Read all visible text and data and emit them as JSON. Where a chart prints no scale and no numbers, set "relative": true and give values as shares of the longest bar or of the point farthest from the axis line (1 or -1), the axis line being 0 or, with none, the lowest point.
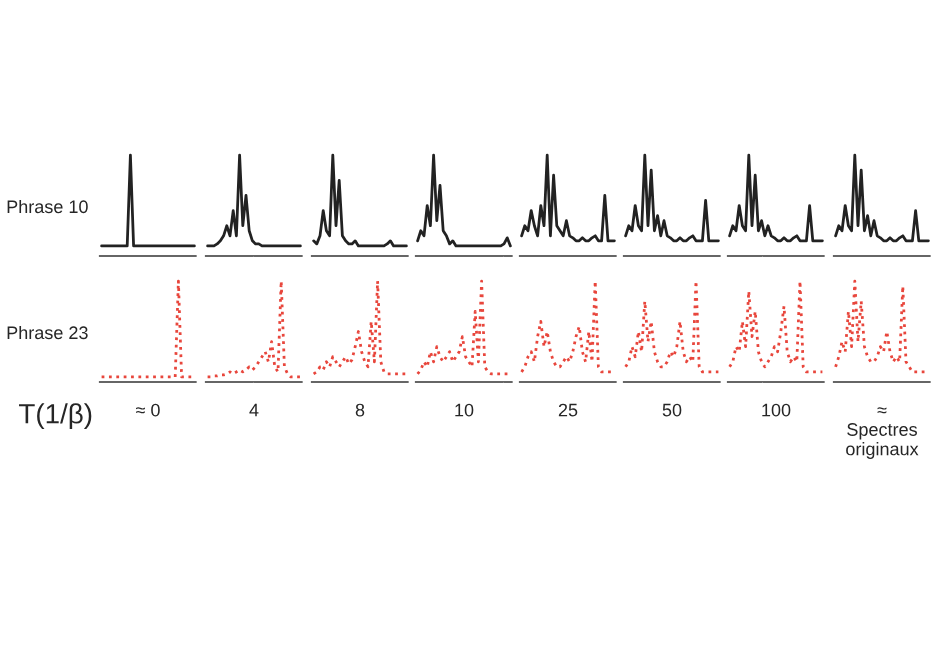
{
  "chart_data": [
    {
      "type": "line",
      "relative": true,
      "line_style": "solid",
      "ylabel": "Phrase 10",
      "categories": [
        null,
        null,
        null,
        null,
        null,
        null,
        null,
        null,
        null,
        null,
        null,
        null,
        null,
        null,
        null,
        null,
        null,
        null,
        null,
        null,
        null,
        null,
        null,
        null,
        null,
        null,
        null,
        null,
        null,
        null
      ],
      "series": [
        {
          "color": "#222222",
          "values": [
            0.1,
            0.1,
            0.1,
            0.1,
            0.1,
            0.1,
            0.1,
            0.1,
            0.1,
            1.0,
            0.1,
            0.1,
            0.1,
            0.1,
            0.1,
            0.1,
            0.1,
            0.1,
            0.1,
            0.1,
            0.1,
            0.1,
            0.1,
            0.1,
            0.1,
            0.1,
            0.1,
            0.1,
            0.1,
            0.1
          ]
        }
      ]
    },
    {
      "type": "line",
      "relative": true,
      "line_style": "solid",
      "categories": [
        null,
        null,
        null,
        null,
        null,
        null,
        null,
        null,
        null,
        null,
        null,
        null,
        null,
        null,
        null,
        null,
        null,
        null,
        null,
        null,
        null,
        null,
        null,
        null,
        null,
        null,
        null,
        null,
        null,
        null
      ],
      "series": [
        {
          "color": "#222222",
          "values": [
            0.1,
            0.1,
            0.1,
            0.12,
            0.15,
            0.2,
            0.3,
            0.2,
            0.45,
            0.2,
            1.0,
            0.3,
            0.6,
            0.25,
            0.15,
            0.12,
            0.12,
            0.1,
            0.1,
            0.1,
            0.1,
            0.1,
            0.1,
            0.1,
            0.1,
            0.1,
            0.1,
            0.1,
            0.1,
            0.1
          ]
        }
      ]
    },
    {
      "type": "line",
      "relative": true,
      "line_style": "solid",
      "categories": [
        null,
        null,
        null,
        null,
        null,
        null,
        null,
        null,
        null,
        null,
        null,
        null,
        null,
        null,
        null,
        null,
        null,
        null,
        null,
        null,
        null,
        null,
        null,
        null,
        null,
        null,
        null,
        null,
        null,
        null
      ],
      "series": [
        {
          "color": "#222222",
          "values": [
            0.15,
            0.12,
            0.2,
            0.45,
            0.25,
            0.2,
            1.0,
            0.3,
            0.75,
            0.2,
            0.15,
            0.12,
            0.12,
            0.15,
            0.1,
            0.1,
            0.1,
            0.1,
            0.1,
            0.1,
            0.1,
            0.1,
            0.1,
            0.12,
            0.15,
            0.1,
            0.1,
            0.1,
            0.1,
            0.1
          ]
        }
      ]
    },
    {
      "type": "line",
      "relative": true,
      "line_style": "solid",
      "categories": [
        null,
        null,
        null,
        null,
        null,
        null,
        null,
        null,
        null,
        null,
        null,
        null,
        null,
        null,
        null,
        null,
        null,
        null,
        null,
        null,
        null,
        null,
        null,
        null,
        null,
        null,
        null,
        null,
        null,
        null
      ],
      "series": [
        {
          "color": "#222222",
          "values": [
            0.15,
            0.25,
            0.2,
            0.5,
            0.3,
            1.0,
            0.35,
            0.7,
            0.25,
            0.2,
            0.12,
            0.15,
            0.1,
            0.1,
            0.1,
            0.1,
            0.1,
            0.1,
            0.1,
            0.1,
            0.1,
            0.1,
            0.1,
            0.1,
            0.1,
            0.1,
            0.1,
            0.12,
            0.18,
            0.1
          ]
        }
      ]
    },
    {
      "type": "line",
      "relative": true,
      "line_style": "solid",
      "categories": [
        null,
        null,
        null,
        null,
        null,
        null,
        null,
        null,
        null,
        null,
        null,
        null,
        null,
        null,
        null,
        null,
        null,
        null,
        null,
        null,
        null,
        null,
        null,
        null,
        null,
        null,
        null,
        null,
        null,
        null
      ],
      "series": [
        {
          "color": "#222222",
          "values": [
            0.2,
            0.3,
            0.25,
            0.45,
            0.3,
            0.2,
            0.5,
            0.3,
            1.0,
            0.2,
            0.8,
            0.3,
            0.25,
            0.2,
            0.35,
            0.2,
            0.18,
            0.15,
            0.15,
            0.18,
            0.15,
            0.15,
            0.18,
            0.2,
            0.15,
            0.15,
            0.6,
            0.15,
            0.15,
            0.15
          ]
        }
      ]
    },
    {
      "type": "line",
      "relative": true,
      "line_style": "solid",
      "categories": [
        null,
        null,
        null,
        null,
        null,
        null,
        null,
        null,
        null,
        null,
        null,
        null,
        null,
        null,
        null,
        null,
        null,
        null,
        null,
        null,
        null,
        null,
        null,
        null,
        null,
        null,
        null,
        null,
        null,
        null
      ],
      "series": [
        {
          "color": "#222222",
          "values": [
            0.2,
            0.3,
            0.25,
            0.5,
            0.3,
            0.25,
            1.0,
            0.3,
            0.85,
            0.25,
            0.4,
            0.2,
            0.35,
            0.2,
            0.18,
            0.15,
            0.15,
            0.18,
            0.15,
            0.15,
            0.18,
            0.2,
            0.15,
            0.15,
            0.15,
            0.55,
            0.15,
            0.15,
            0.15,
            0.15
          ]
        }
      ]
    },
    {
      "type": "line",
      "relative": true,
      "line_style": "solid",
      "categories": [
        null,
        null,
        null,
        null,
        null,
        null,
        null,
        null,
        null,
        null,
        null,
        null,
        null,
        null,
        null,
        null,
        null,
        null,
        null,
        null,
        null,
        null,
        null,
        null,
        null,
        null,
        null,
        null,
        null,
        null
      ],
      "series": [
        {
          "color": "#222222",
          "values": [
            0.2,
            0.3,
            0.25,
            0.5,
            0.3,
            0.25,
            1.0,
            0.3,
            0.8,
            0.25,
            0.35,
            0.2,
            0.3,
            0.2,
            0.18,
            0.15,
            0.15,
            0.18,
            0.15,
            0.15,
            0.18,
            0.2,
            0.15,
            0.15,
            0.15,
            0.5,
            0.15,
            0.15,
            0.15,
            0.15
          ]
        }
      ]
    },
    {
      "type": "line",
      "relative": true,
      "line_style": "solid",
      "categories": [
        null,
        null,
        null,
        null,
        null,
        null,
        null,
        null,
        null,
        null,
        null,
        null,
        null,
        null,
        null,
        null,
        null,
        null,
        null,
        null,
        null,
        null,
        null,
        null,
        null,
        null,
        null,
        null,
        null,
        null
      ],
      "series": [
        {
          "color": "#222222",
          "values": [
            0.2,
            0.3,
            0.25,
            0.5,
            0.3,
            0.25,
            1.0,
            0.3,
            0.85,
            0.25,
            0.4,
            0.2,
            0.35,
            0.2,
            0.18,
            0.15,
            0.15,
            0.18,
            0.15,
            0.15,
            0.18,
            0.2,
            0.15,
            0.15,
            0.15,
            0.45,
            0.15,
            0.15,
            0.15,
            0.15
          ]
        }
      ]
    },
    {
      "type": "line",
      "relative": true,
      "line_style": "dotted",
      "ylabel": "Phrase 23",
      "xlabel": "≈ 0",
      "annotations": [
        "T(1/β)"
      ],
      "categories": [
        null,
        null,
        null,
        null,
        null,
        null,
        null,
        null,
        null,
        null,
        null,
        null,
        null,
        null,
        null,
        null,
        null,
        null,
        null,
        null,
        null,
        null,
        null,
        null,
        null,
        null,
        null,
        null,
        null,
        null
      ],
      "series": [
        {
          "color": "#e8463c",
          "values": [
            0.05,
            0.05,
            0.05,
            0.05,
            0.05,
            0.05,
            0.05,
            0.05,
            0.05,
            0.05,
            0.05,
            0.05,
            0.05,
            0.05,
            0.05,
            0.05,
            0.05,
            0.05,
            0.05,
            0.05,
            0.05,
            0.05,
            0.05,
            0.05,
            1.0,
            0.05,
            0.05,
            0.05,
            0.05,
            0.05
          ]
        }
      ]
    },
    {
      "type": "line",
      "relative": true,
      "line_style": "dotted",
      "xlabel": "4",
      "categories": [
        null,
        null,
        null,
        null,
        null,
        null,
        null,
        null,
        null,
        null,
        null,
        null,
        null,
        null,
        null,
        null,
        null,
        null,
        null,
        null,
        null,
        null,
        null,
        null,
        null,
        null,
        null,
        null,
        null,
        null
      ],
      "series": [
        {
          "color": "#e8463c",
          "values": [
            0.05,
            0.05,
            0.06,
            0.06,
            0.07,
            0.07,
            0.08,
            0.1,
            0.08,
            0.1,
            0.12,
            0.1,
            0.12,
            0.15,
            0.12,
            0.15,
            0.2,
            0.25,
            0.3,
            0.2,
            0.4,
            0.15,
            0.1,
            1.0,
            0.15,
            0.08,
            0.05,
            0.05,
            0.05,
            0.05
          ]
        }
      ]
    },
    {
      "type": "line",
      "relative": true,
      "line_style": "dotted",
      "xlabel": "8",
      "categories": [
        null,
        null,
        null,
        null,
        null,
        null,
        null,
        null,
        null,
        null,
        null,
        null,
        null,
        null,
        null,
        null,
        null,
        null,
        null,
        null,
        null,
        null,
        null,
        null,
        null,
        null,
        null,
        null,
        null,
        null
      ],
      "series": [
        {
          "color": "#e8463c",
          "values": [
            0.08,
            0.1,
            0.15,
            0.12,
            0.2,
            0.15,
            0.25,
            0.2,
            0.15,
            0.2,
            0.25,
            0.18,
            0.22,
            0.35,
            0.5,
            0.3,
            0.2,
            0.15,
            0.6,
            0.2,
            1.0,
            0.2,
            0.1,
            0.08,
            0.08,
            0.08,
            0.08,
            0.08,
            0.08,
            0.08
          ]
        }
      ]
    },
    {
      "type": "line",
      "relative": true,
      "line_style": "dotted",
      "xlabel": "10",
      "categories": [
        null,
        null,
        null,
        null,
        null,
        null,
        null,
        null,
        null,
        null,
        null,
        null,
        null,
        null,
        null,
        null,
        null,
        null,
        null,
        null,
        null,
        null,
        null,
        null,
        null,
        null,
        null,
        null,
        null,
        null
      ],
      "series": [
        {
          "color": "#e8463c",
          "values": [
            0.08,
            0.12,
            0.2,
            0.15,
            0.3,
            0.2,
            0.35,
            0.25,
            0.2,
            0.25,
            0.3,
            0.2,
            0.25,
            0.3,
            0.45,
            0.25,
            0.2,
            0.15,
            0.7,
            0.2,
            1.0,
            0.15,
            0.1,
            0.08,
            0.08,
            0.08,
            0.08,
            0.08,
            0.08,
            0.08
          ]
        }
      ]
    },
    {
      "type": "line",
      "relative": true,
      "line_style": "dotted",
      "xlabel": "25",
      "categories": [
        null,
        null,
        null,
        null,
        null,
        null,
        null,
        null,
        null,
        null,
        null,
        null,
        null,
        null,
        null,
        null,
        null,
        null,
        null,
        null,
        null,
        null,
        null,
        null,
        null,
        null,
        null,
        null,
        null,
        null
      ],
      "series": [
        {
          "color": "#e8463c",
          "values": [
            0.1,
            0.15,
            0.25,
            0.3,
            0.2,
            0.45,
            0.6,
            0.35,
            0.5,
            0.3,
            0.2,
            0.15,
            0.15,
            0.2,
            0.25,
            0.2,
            0.3,
            0.45,
            0.55,
            0.3,
            0.2,
            0.5,
            0.2,
            1.0,
            0.15,
            0.1,
            0.1,
            0.1,
            0.1,
            0.1
          ]
        }
      ]
    },
    {
      "type": "line",
      "relative": true,
      "line_style": "dotted",
      "xlabel": "50",
      "categories": [
        null,
        null,
        null,
        null,
        null,
        null,
        null,
        null,
        null,
        null,
        null,
        null,
        null,
        null,
        null,
        null,
        null,
        null,
        null,
        null,
        null,
        null,
        null,
        null,
        null,
        null,
        null,
        null,
        null,
        null
      ],
      "series": [
        {
          "color": "#e8463c",
          "values": [
            0.15,
            0.2,
            0.35,
            0.25,
            0.5,
            0.3,
            0.8,
            0.4,
            0.6,
            0.3,
            0.2,
            0.15,
            0.15,
            0.2,
            0.3,
            0.25,
            0.35,
            0.6,
            0.3,
            0.2,
            0.25,
            0.2,
            1.0,
            0.15,
            0.1,
            0.1,
            0.1,
            0.1,
            0.1,
            0.1
          ]
        }
      ]
    },
    {
      "type": "line",
      "relative": true,
      "line_style": "dotted",
      "xlabel": "100",
      "categories": [
        null,
        null,
        null,
        null,
        null,
        null,
        null,
        null,
        null,
        null,
        null,
        null,
        null,
        null,
        null,
        null,
        null,
        null,
        null,
        null,
        null,
        null,
        null,
        null,
        null,
        null,
        null,
        null,
        null,
        null
      ],
      "series": [
        {
          "color": "#e8463c",
          "values": [
            0.15,
            0.2,
            0.35,
            0.3,
            0.6,
            0.35,
            0.9,
            0.45,
            0.7,
            0.3,
            0.2,
            0.15,
            0.2,
            0.25,
            0.35,
            0.3,
            0.5,
            0.75,
            0.3,
            0.2,
            0.25,
            0.2,
            1.0,
            0.15,
            0.1,
            0.1,
            0.1,
            0.1,
            0.1,
            0.1
          ]
        }
      ]
    },
    {
      "type": "line",
      "relative": true,
      "line_style": "dotted",
      "xlabel": "≈\nSpectres\noriginaux",
      "categories": [
        null,
        null,
        null,
        null,
        null,
        null,
        null,
        null,
        null,
        null,
        null,
        null,
        null,
        null,
        null,
        null,
        null,
        null,
        null,
        null,
        null,
        null,
        null,
        null,
        null,
        null,
        null,
        null,
        null,
        null
      ],
      "series": [
        {
          "color": "#e8463c",
          "values": [
            0.15,
            0.25,
            0.4,
            0.3,
            0.7,
            0.35,
            1.0,
            0.4,
            0.8,
            0.35,
            0.25,
            0.2,
            0.2,
            0.25,
            0.35,
            0.3,
            0.5,
            0.3,
            0.2,
            0.25,
            0.2,
            0.95,
            0.2,
            0.15,
            0.1,
            0.1,
            0.1,
            0.1,
            0.1,
            0.1
          ]
        }
      ]
    }
  ]
}
